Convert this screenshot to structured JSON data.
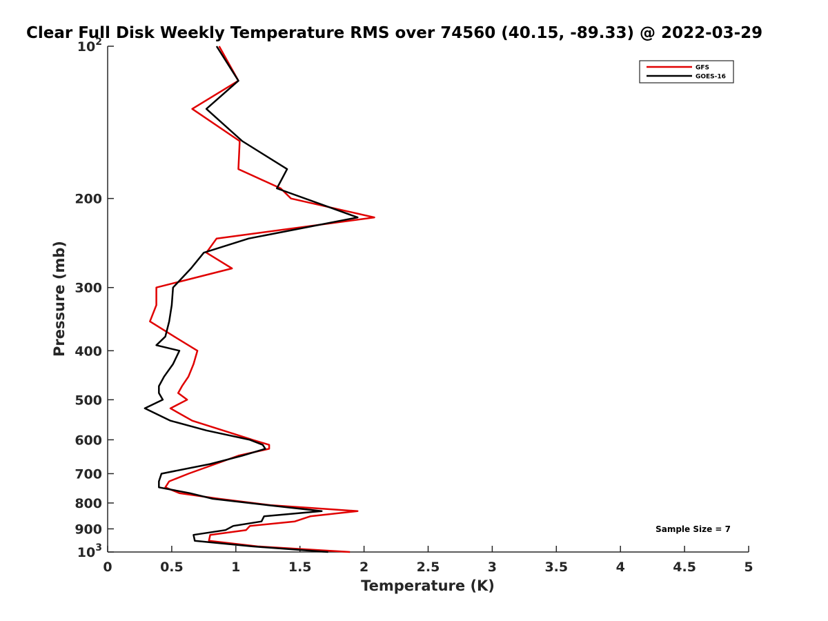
{
  "chart_data": {
    "type": "line",
    "title": "Clear Full Disk Weekly Temperature RMS over 74560 (40.15, -89.33) @ 2022-03-29",
    "xlabel": "Temperature (K)",
    "ylabel": "Pressure (mb)",
    "xlim": [
      0,
      5
    ],
    "ylim": [
      100,
      1000
    ],
    "y_scale": "log",
    "y_reversed": true,
    "x_ticks": [
      0,
      0.5,
      1,
      1.5,
      2,
      2.5,
      3,
      3.5,
      4,
      4.5,
      5
    ],
    "x_tick_labels": [
      "0",
      "0.5",
      "1",
      "1.5",
      "2",
      "2.5",
      "3",
      "3.5",
      "4",
      "4.5",
      "5"
    ],
    "y_ticks": [
      100,
      200,
      300,
      400,
      500,
      600,
      700,
      800,
      900,
      1000
    ],
    "y_tick_labels": [
      {
        "base": "10",
        "exp": "2"
      },
      {
        "base": "200",
        "exp": ""
      },
      {
        "base": "300",
        "exp": ""
      },
      {
        "base": "400",
        "exp": ""
      },
      {
        "base": "500",
        "exp": ""
      },
      {
        "base": "600",
        "exp": ""
      },
      {
        "base": "700",
        "exp": ""
      },
      {
        "base": "800",
        "exp": ""
      },
      {
        "base": "900",
        "exp": ""
      },
      {
        "base": "10",
        "exp": "3"
      }
    ],
    "grid": false,
    "legend_position": "top-right",
    "series": [
      {
        "name": "GFS",
        "color": "#e00000",
        "points": [
          [
            0.87,
            100
          ],
          [
            1.02,
            117
          ],
          [
            0.66,
            133
          ],
          [
            1.03,
            154
          ],
          [
            1.02,
            175
          ],
          [
            1.35,
            191
          ],
          [
            1.43,
            200
          ],
          [
            2.08,
            218
          ],
          [
            0.85,
            240
          ],
          [
            0.77,
            256
          ],
          [
            0.97,
            275
          ],
          [
            0.38,
            300
          ],
          [
            0.38,
            325
          ],
          [
            0.33,
            350
          ],
          [
            0.52,
            375
          ],
          [
            0.7,
            400
          ],
          [
            0.67,
            425
          ],
          [
            0.63,
            450
          ],
          [
            0.58,
            470
          ],
          [
            0.55,
            485
          ],
          [
            0.62,
            500
          ],
          [
            0.49,
            520
          ],
          [
            0.66,
            550
          ],
          [
            0.9,
            575
          ],
          [
            1.13,
            600
          ],
          [
            1.26,
            614
          ],
          [
            1.26,
            625
          ],
          [
            1.02,
            645
          ],
          [
            0.84,
            670
          ],
          [
            0.63,
            700
          ],
          [
            0.48,
            725
          ],
          [
            0.45,
            745
          ],
          [
            0.56,
            765
          ],
          [
            0.87,
            785
          ],
          [
            1.27,
            808
          ],
          [
            1.95,
            830
          ],
          [
            1.58,
            850
          ],
          [
            1.46,
            870
          ],
          [
            1.11,
            888
          ],
          [
            1.08,
            905
          ],
          [
            0.8,
            925
          ],
          [
            0.79,
            950
          ],
          [
            1.17,
            975
          ],
          [
            1.89,
            1000
          ]
        ]
      },
      {
        "name": "GOES-16",
        "color": "#000000",
        "points": [
          [
            0.85,
            100
          ],
          [
            1.02,
            117
          ],
          [
            0.77,
            133
          ],
          [
            1.05,
            154
          ],
          [
            1.4,
            175
          ],
          [
            1.32,
            191
          ],
          [
            1.95,
            218
          ],
          [
            1.1,
            240
          ],
          [
            0.75,
            256
          ],
          [
            0.65,
            275
          ],
          [
            0.51,
            300
          ],
          [
            0.5,
            325
          ],
          [
            0.48,
            350
          ],
          [
            0.45,
            375
          ],
          [
            0.38,
            390
          ],
          [
            0.56,
            400
          ],
          [
            0.51,
            425
          ],
          [
            0.44,
            450
          ],
          [
            0.4,
            470
          ],
          [
            0.4,
            485
          ],
          [
            0.43,
            500
          ],
          [
            0.29,
            520
          ],
          [
            0.49,
            550
          ],
          [
            0.77,
            575
          ],
          [
            1.11,
            600
          ],
          [
            1.21,
            614
          ],
          [
            1.23,
            625
          ],
          [
            1.05,
            645
          ],
          [
            0.8,
            670
          ],
          [
            0.42,
            700
          ],
          [
            0.4,
            725
          ],
          [
            0.4,
            745
          ],
          [
            0.64,
            765
          ],
          [
            0.82,
            785
          ],
          [
            1.25,
            808
          ],
          [
            1.67,
            830
          ],
          [
            1.22,
            850
          ],
          [
            1.2,
            870
          ],
          [
            0.98,
            888
          ],
          [
            0.92,
            905
          ],
          [
            0.67,
            925
          ],
          [
            0.68,
            950
          ],
          [
            1.13,
            975
          ],
          [
            1.72,
            1000
          ]
        ]
      }
    ],
    "annotations": [
      {
        "text": "Sample Size = 7",
        "position": "bottom-right"
      }
    ]
  }
}
